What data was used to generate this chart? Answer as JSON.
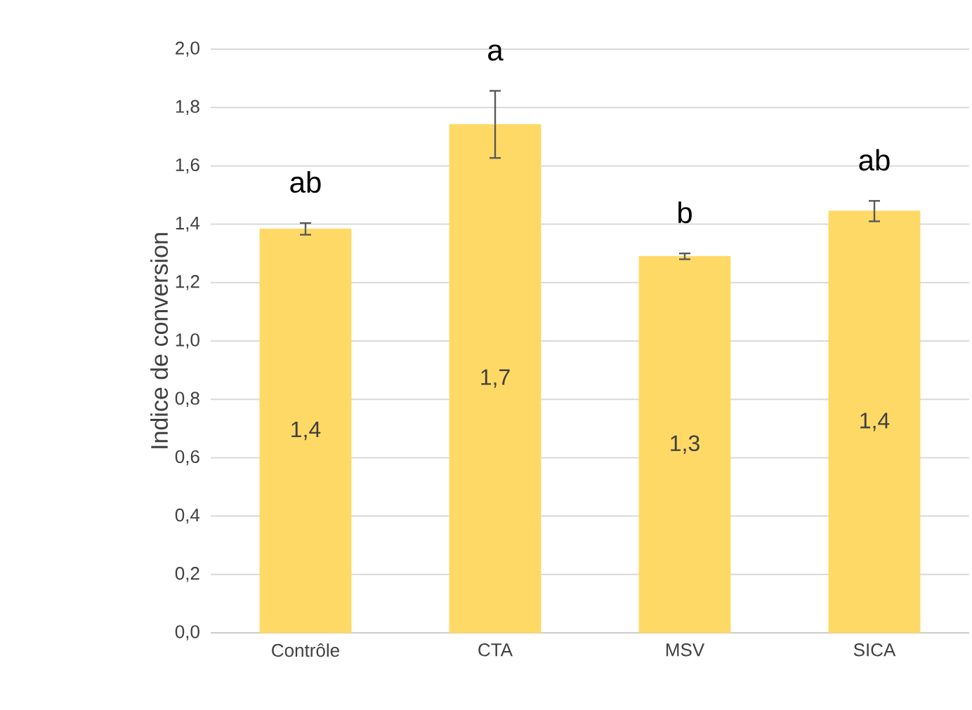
{
  "chart_data": {
    "type": "bar",
    "ylabel": "Indice de conversion",
    "categories": [
      "Contrôle",
      "CTA",
      "MSV",
      "SICA"
    ],
    "values": [
      1.384,
      1.742,
      1.29,
      1.445
    ],
    "errors": [
      0.02,
      0.115,
      0.01,
      0.035
    ],
    "value_labels": [
      "1,4",
      "1,7",
      "1,3",
      "1,4"
    ],
    "color": "#ffd966",
    "ylim": [
      0,
      2
    ],
    "yticks": [
      {
        "value": 0,
        "label": "0,0"
      },
      {
        "value": 0.2,
        "label": "0,2"
      },
      {
        "value": 0.4,
        "label": "0,4"
      },
      {
        "value": 0.6,
        "label": "0,6"
      },
      {
        "value": 0.8,
        "label": "0,8"
      },
      {
        "value": 1,
        "label": "1,0"
      },
      {
        "value": 1.2,
        "label": "1,2"
      },
      {
        "value": 1.4,
        "label": "1,4"
      },
      {
        "value": 1.6,
        "label": "1,6"
      },
      {
        "value": 1.8,
        "label": "1,8"
      },
      {
        "value": 2,
        "label": "2,0"
      }
    ],
    "grid": "y",
    "annotations": [
      "ab",
      "a",
      "b",
      "ab"
    ]
  }
}
